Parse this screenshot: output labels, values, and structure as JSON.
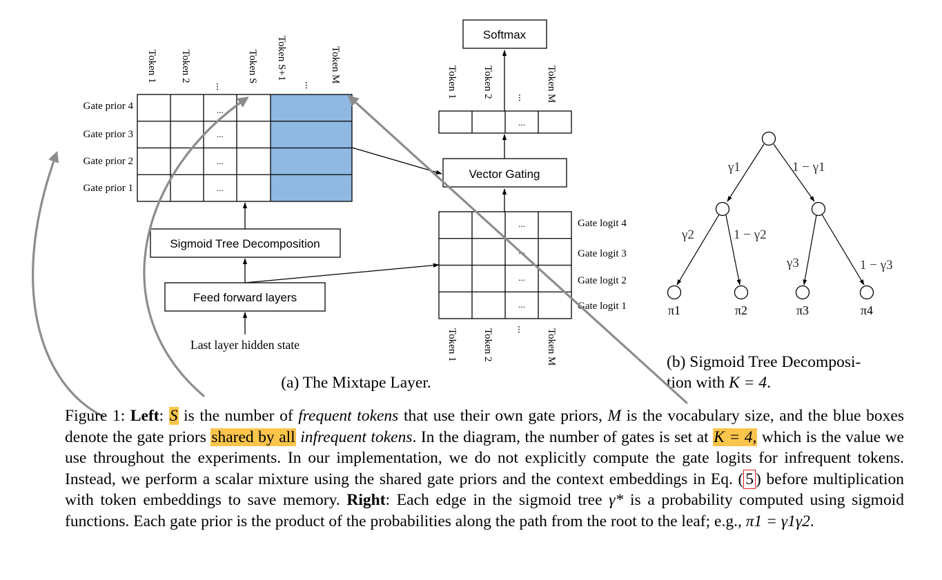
{
  "panel_a": {
    "column_tokens": [
      "Token 1",
      "Token 2",
      "...",
      "Token S",
      "Token S+1",
      "...",
      "Token M"
    ],
    "grid_ellipsis": "...",
    "gate_priors": [
      "Gate prior 4",
      "Gate prior 3",
      "Gate prior 2",
      "Gate prior 1"
    ],
    "sigmoid_tree_label": "Sigmoid Tree Decomposition",
    "ffn_label": "Feed forward layers",
    "hidden_state_label": "Last layer hidden state",
    "softmax_label": "Softmax",
    "vector_gating_label": "Vector Gating",
    "top_tokens": [
      "Token 1",
      "Token 2",
      "...",
      "Token M"
    ],
    "gate_logits": [
      "Gate logit 4",
      "Gate logit 3",
      "Gate logit 2",
      "Gate logit 1"
    ],
    "bottom_tokens": [
      "Token 1",
      "Token 2",
      "...",
      "Token M"
    ],
    "caption": "(a) The Mixtape Layer.",
    "prior_fill_color": "#8fb8e2"
  },
  "panel_b": {
    "edge_labels": [
      "γ1",
      "1 − γ1",
      "γ2",
      "1 − γ2",
      "γ3",
      "1 − γ3"
    ],
    "leaf_labels": [
      "π1",
      "π2",
      "π3",
      "π4"
    ],
    "caption_line1": "(b) Sigmoid Tree Decomposi-",
    "caption_line2_prefix": "tion with ",
    "caption_math": "K = 4",
    "caption_line2_suffix": "."
  },
  "caption": {
    "figure_label": "Figure 1: ",
    "left_label": "Left",
    "colon1": ": ",
    "s_symbol": "S",
    "t1": " is the number of ",
    "frequent_tokens": "frequent tokens",
    "t2": " that use their own gate priors, ",
    "m_symbol": "M",
    "t3": " is the vocabulary size, and the blue boxes denote the gate priors ",
    "shared_by_all": "shared by all",
    "t4": " ",
    "infrequent_tokens": "infrequent tokens",
    "t5": ". In the diagram, the number of gates is set at ",
    "k_equation": "K = 4,",
    "t6": " which is the value we use throughout the experiments. In our implementation, we do not explicitly compute the gate logits for infrequent tokens. Instead, we perform a scalar mixture using the shared gate priors and the context embeddings in Eq. (",
    "eq_ref": "5",
    "t7": ") before multiplication with token embeddings to save memory. ",
    "right_label": "Right",
    "t8": ": Each edge in the sigmoid tree ",
    "gamma_star": "γ*",
    "t9": " is a probability computed using sigmoid functions. Each gate prior is the product of the probabilities along the path from the root to the leaf; e.g., ",
    "example_eq": "π1 = γ1γ2",
    "t10": "."
  },
  "colors": {
    "highlight": "#fbc54c",
    "annotation_arrow": "#8c8c8c",
    "ref_box": "#e02020"
  }
}
